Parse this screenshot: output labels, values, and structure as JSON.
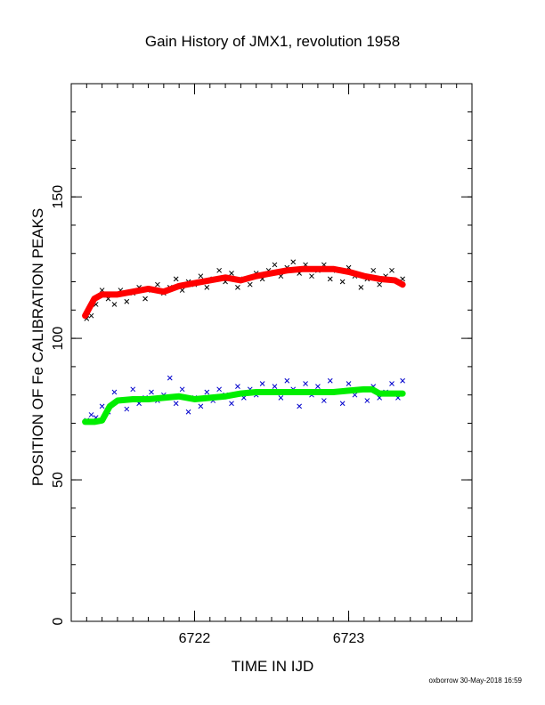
{
  "chart_data": {
    "type": "scatter",
    "title": "Gain History of JMX1, revolution 1958",
    "xlabel": "TIME IN IJD",
    "ylabel": "POSITION OF Fe CALIBRATION PEAKS",
    "xlim": [
      6721.2,
      6723.8
    ],
    "ylim": [
      0,
      190
    ],
    "x_ticks": [
      6722,
      6723
    ],
    "y_ticks": [
      0,
      50,
      100,
      150
    ],
    "footer": "oxborrow 30-May-2018 16:59",
    "grid": false,
    "series": [
      {
        "color": "#000000",
        "marker": "x",
        "x": [
          6721.3,
          6721.33,
          6721.36,
          6721.4,
          6721.44,
          6721.48,
          6721.52,
          6721.56,
          6721.6,
          6721.64,
          6721.68,
          6721.72,
          6721.76,
          6721.8,
          6721.84,
          6721.88,
          6721.92,
          6721.96,
          6722.0,
          6722.04,
          6722.08,
          6722.12,
          6722.16,
          6722.2,
          6722.24,
          6722.28,
          6722.32,
          6722.36,
          6722.4,
          6722.44,
          6722.48,
          6722.52,
          6722.56,
          6722.6,
          6722.64,
          6722.68,
          6722.72,
          6722.76,
          6722.8,
          6722.84,
          6722.88,
          6722.92,
          6722.96,
          6723.0,
          6723.04,
          6723.08,
          6723.12,
          6723.16,
          6723.2,
          6723.24,
          6723.28,
          6723.32,
          6723.35
        ],
        "y": [
          107,
          108,
          112,
          117,
          114,
          112,
          117,
          113,
          116,
          118,
          114,
          117,
          119,
          116,
          118,
          121,
          117,
          120,
          119,
          122,
          118,
          121,
          124,
          120,
          123,
          118,
          121,
          119,
          123,
          121,
          124,
          126,
          122,
          125,
          127,
          123,
          126,
          122,
          124,
          126,
          121,
          124,
          120,
          125,
          122,
          118,
          121,
          124,
          119,
          122,
          124,
          120,
          121
        ]
      },
      {
        "color": "#ff0000",
        "marker": "line",
        "x": [
          6721.29,
          6721.35,
          6721.4,
          6721.5,
          6721.6,
          6721.7,
          6721.8,
          6721.9,
          6722.0,
          6722.1,
          6722.2,
          6722.3,
          6722.4,
          6722.5,
          6722.6,
          6722.7,
          6722.8,
          6722.9,
          6723.0,
          6723.1,
          6723.2,
          6723.3,
          6723.35
        ],
        "y": [
          108,
          114,
          115.5,
          115.5,
          116.5,
          117.5,
          116.5,
          118.5,
          119.5,
          120.5,
          121.5,
          120.5,
          122,
          123,
          124,
          124.5,
          124.5,
          124.5,
          123.5,
          122,
          121,
          120.5,
          119
        ]
      },
      {
        "color": "#0000cc",
        "marker": "x",
        "x": [
          6721.3,
          6721.33,
          6721.36,
          6721.4,
          6721.44,
          6721.48,
          6721.52,
          6721.56,
          6721.6,
          6721.64,
          6721.68,
          6721.72,
          6721.76,
          6721.8,
          6721.84,
          6721.88,
          6721.92,
          6721.96,
          6722.0,
          6722.04,
          6722.08,
          6722.12,
          6722.16,
          6722.2,
          6722.24,
          6722.28,
          6722.32,
          6722.36,
          6722.4,
          6722.44,
          6722.48,
          6722.52,
          6722.56,
          6722.6,
          6722.64,
          6722.68,
          6722.72,
          6722.76,
          6722.8,
          6722.84,
          6722.88,
          6722.92,
          6722.96,
          6723.0,
          6723.04,
          6723.08,
          6723.12,
          6723.16,
          6723.2,
          6723.24,
          6723.28,
          6723.32,
          6723.35
        ],
        "y": [
          71,
          73,
          72,
          76,
          74,
          81,
          78,
          75,
          82,
          77,
          79,
          81,
          78,
          80,
          86,
          77,
          82,
          74,
          79,
          76,
          81,
          78,
          82,
          80,
          77,
          83,
          79,
          82,
          80,
          84,
          81,
          83,
          79,
          85,
          82,
          76,
          84,
          80,
          83,
          78,
          85,
          81,
          77,
          84,
          80,
          82,
          78,
          83,
          79,
          81,
          84,
          79,
          85
        ]
      },
      {
        "color": "#00ee00",
        "marker": "line",
        "x": [
          6721.29,
          6721.35,
          6721.4,
          6721.45,
          6721.5,
          6721.6,
          6721.7,
          6721.8,
          6721.9,
          6722.0,
          6722.1,
          6722.2,
          6722.3,
          6722.4,
          6722.5,
          6722.6,
          6722.7,
          6722.8,
          6722.9,
          6723.0,
          6723.1,
          6723.15,
          6723.2,
          6723.3,
          6723.35
        ],
        "y": [
          70.5,
          70.5,
          71,
          76,
          78,
          78.5,
          78.5,
          79,
          79.5,
          78.5,
          79,
          79.5,
          80.5,
          81,
          81,
          81,
          81,
          81,
          81,
          81.5,
          82,
          82,
          80.5,
          80.5,
          80.5
        ]
      }
    ]
  }
}
